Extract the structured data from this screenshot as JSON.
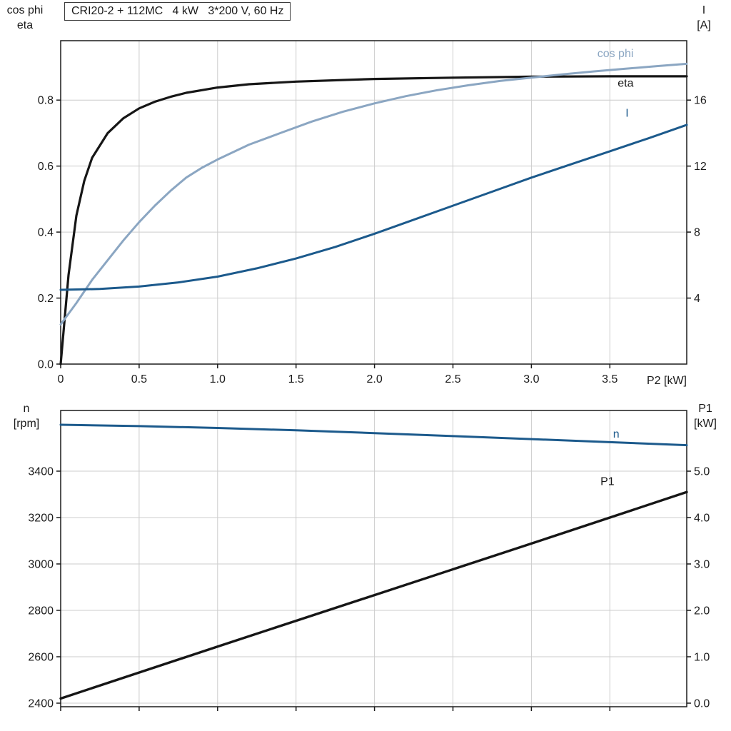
{
  "title": "CRI20-2 + 112MC   4 kW   3*200 V, 60 Hz",
  "colors": {
    "black": "#161616",
    "light_blue": "#8ba6c2",
    "dark_blue": "#1c5a8c",
    "grid": "#cccccc"
  },
  "chart_data": [
    {
      "type": "line",
      "id": "top",
      "title": "CRI20-2 + 112MC   4 kW   3*200 V, 60 Hz",
      "corner_left": [
        "cos phi",
        "eta"
      ],
      "corner_right": [
        "I",
        "[A]"
      ],
      "x_axis": {
        "label": "P2 [kW]",
        "range": [
          0,
          3.99
        ],
        "ticks": [
          0,
          0.5,
          1,
          1.5,
          2,
          2.5,
          3,
          3.5
        ],
        "tick_labels": [
          "0",
          "0.5",
          "1.0",
          "1.5",
          "2.0",
          "2.5",
          "3.0",
          "3.5"
        ]
      },
      "y_left": {
        "range": [
          0,
          0.98
        ],
        "ticks": [
          0,
          0.2,
          0.4,
          0.6,
          0.8
        ],
        "tick_labels": [
          "0.0",
          "0.2",
          "0.4",
          "0.6",
          "0.8"
        ]
      },
      "y_right": {
        "range": [
          0,
          19.6
        ],
        "ticks": [
          4,
          8,
          12,
          16
        ],
        "tick_labels": [
          "4",
          "8",
          "12",
          "16"
        ]
      },
      "grid": true,
      "legend_position": "inline-labels",
      "series": [
        {
          "name": "eta",
          "label": "eta",
          "axis": "left",
          "color": "#161616",
          "width": 3.2,
          "label_x": 3.55,
          "label_y": 0.84,
          "x": [
            0,
            0.05,
            0.1,
            0.15,
            0.2,
            0.3,
            0.4,
            0.5,
            0.6,
            0.7,
            0.8,
            1.0,
            1.2,
            1.5,
            2.0,
            2.5,
            3.0,
            3.5,
            3.99
          ],
          "y": [
            0,
            0.27,
            0.45,
            0.555,
            0.625,
            0.7,
            0.745,
            0.775,
            0.795,
            0.81,
            0.822,
            0.838,
            0.848,
            0.856,
            0.864,
            0.868,
            0.871,
            0.872,
            0.872
          ]
        },
        {
          "name": "cos_phi",
          "label": "cos phi",
          "axis": "left",
          "color": "#8ba6c2",
          "width": 3,
          "label_x": 3.42,
          "label_y": 0.93,
          "x": [
            0,
            0.1,
            0.2,
            0.3,
            0.4,
            0.5,
            0.6,
            0.7,
            0.8,
            0.9,
            1.0,
            1.2,
            1.4,
            1.6,
            1.8,
            2.0,
            2.2,
            2.4,
            2.6,
            2.8,
            3.0,
            3.2,
            3.4,
            3.6,
            3.8,
            3.99
          ],
          "y": [
            0.12,
            0.185,
            0.255,
            0.315,
            0.375,
            0.43,
            0.48,
            0.525,
            0.565,
            0.595,
            0.62,
            0.665,
            0.7,
            0.735,
            0.765,
            0.79,
            0.812,
            0.83,
            0.845,
            0.858,
            0.868,
            0.878,
            0.887,
            0.895,
            0.903,
            0.91
          ]
        },
        {
          "name": "I",
          "label": "I",
          "axis": "right",
          "color": "#1c5a8c",
          "width": 3,
          "label_x": 3.6,
          "label_y": 15.0,
          "x": [
            0,
            0.25,
            0.5,
            0.75,
            1.0,
            1.25,
            1.5,
            1.75,
            2.0,
            2.25,
            2.5,
            2.75,
            3.0,
            3.25,
            3.5,
            3.75,
            3.99
          ],
          "y": [
            4.5,
            4.55,
            4.7,
            4.95,
            5.3,
            5.8,
            6.4,
            7.1,
            7.9,
            8.75,
            9.6,
            10.45,
            11.3,
            12.1,
            12.9,
            13.7,
            14.5
          ]
        }
      ]
    },
    {
      "type": "line",
      "id": "bottom",
      "corner_left": [
        "n",
        "[rpm]"
      ],
      "corner_right": [
        "P1",
        "[kW]"
      ],
      "x_axis": {
        "label": "",
        "range": [
          0,
          3.99
        ],
        "ticks": [
          0,
          0.5,
          1,
          1.5,
          2,
          2.5,
          3,
          3.5
        ],
        "tick_labels": []
      },
      "y_left": {
        "range": [
          2384.6,
          3661.5
        ],
        "ticks": [
          2400,
          2600,
          2800,
          3000,
          3200,
          3400
        ],
        "tick_labels": [
          "2400",
          "2600",
          "2800",
          "3000",
          "3200",
          "3400"
        ]
      },
      "y_right": {
        "range": [
          -0.077,
          6.308
        ],
        "ticks": [
          0,
          1,
          2,
          3,
          4,
          5
        ],
        "tick_labels": [
          "0.0",
          "1.0",
          "2.0",
          "3.0",
          "4.0",
          "5.0"
        ]
      },
      "grid": true,
      "legend_position": "inline-labels",
      "series": [
        {
          "name": "n",
          "label": "n",
          "axis": "left",
          "color": "#1c5a8c",
          "width": 3,
          "label_x": 3.52,
          "label_y": 3545,
          "x": [
            0,
            0.5,
            1.0,
            1.5,
            2.0,
            2.5,
            3.0,
            3.5,
            3.99
          ],
          "y": [
            3600,
            3594,
            3586,
            3576,
            3564,
            3551,
            3538,
            3525,
            3512
          ]
        },
        {
          "name": "P1",
          "label": "P1",
          "axis": "right",
          "color": "#161616",
          "width": 3.4,
          "label_x": 3.44,
          "label_y": 4.7,
          "x": [
            0,
            1.0,
            2.0,
            3.0,
            3.99
          ],
          "y": [
            0.1,
            1.22,
            2.33,
            3.44,
            4.55
          ]
        }
      ]
    }
  ]
}
